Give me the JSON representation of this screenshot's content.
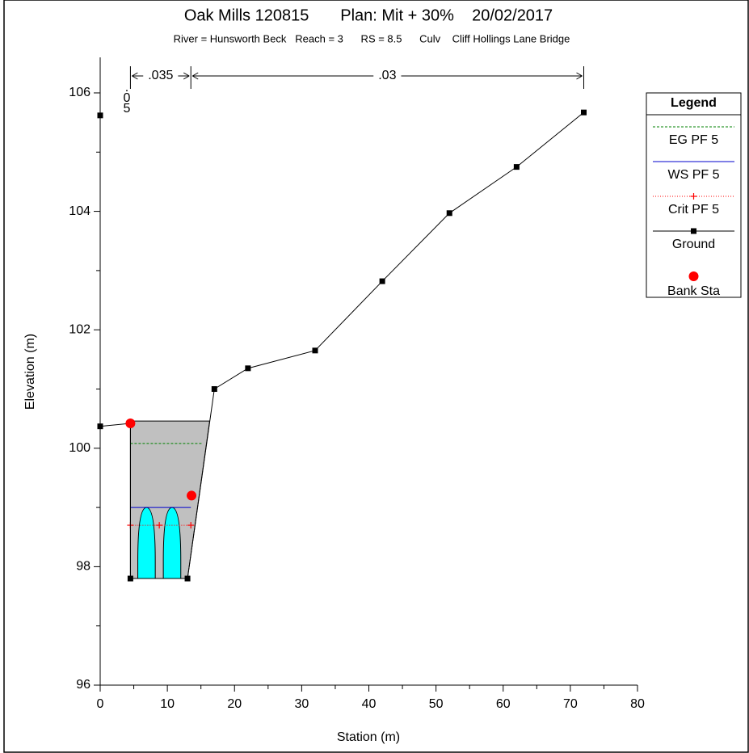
{
  "chart_data": {
    "type": "line",
    "title": "Oak Mills 120815       Plan: Mit + 30%    20/02/2017",
    "subtitle": "River = Hunsworth Beck   Reach = 3      RS = 8.5      Culv    Cliff Hollings Lane Bridge",
    "x_label": "Station (m)",
    "y_label": "Elevation (m)",
    "xlim": [
      0,
      80
    ],
    "ylim": [
      96,
      106.6
    ],
    "xticks": [
      0,
      10,
      20,
      30,
      40,
      50,
      60,
      70,
      80
    ],
    "yticks": [
      96,
      98,
      100,
      102,
      104,
      106
    ],
    "xticks_minor": [
      5,
      15,
      25,
      35,
      45,
      55,
      65,
      75
    ],
    "yticks_minor": [
      97,
      99,
      101,
      103,
      105
    ],
    "legend": "upper right",
    "legend_title": "Legend",
    "manning_breaks": [
      0,
      4.5,
      13.5,
      72
    ],
    "manning_n": [
      ".05",
      ".035",
      ".03"
    ],
    "bridge_deck": {
      "color": "#c0c0c0",
      "x": [
        4.5,
        16.3,
        13,
        4.5
      ],
      "values": [
        100.46,
        100.46,
        97.8,
        97.8
      ]
    },
    "culverts": {
      "color": "#00ffff",
      "left": [
        5.6,
        9.4
      ],
      "right": [
        8.2,
        12.0
      ],
      "bottom": 97.8,
      "top": 99.0
    },
    "series": [
      {
        "name": "EG PF 5",
        "color": "#008000",
        "style": "dashed",
        "marker": "none",
        "x": [
          4.5,
          15.2
        ],
        "values": [
          100.08,
          100.08
        ]
      },
      {
        "name": "WS PF 5",
        "color": "#0000cc",
        "style": "solid",
        "marker": "none",
        "x": [
          4.5,
          13.5
        ],
        "values": [
          99.0,
          99.0
        ]
      },
      {
        "name": "Crit PF 5",
        "color": "#ff0000",
        "style": "dotted",
        "marker": "plus",
        "x": [
          4.5,
          8.8,
          13.5
        ],
        "values": [
          98.7,
          98.7,
          98.7
        ]
      },
      {
        "name": "Ground",
        "color": "#000000",
        "style": "solid",
        "marker": "square",
        "x": [
          0,
          0,
          4.5,
          4.5,
          13,
          17,
          22,
          32,
          42,
          52,
          62,
          72
        ],
        "values": [
          105.62,
          100.37,
          100.42,
          97.8,
          97.8,
          101.0,
          101.35,
          101.65,
          102.82,
          103.97,
          104.75,
          105.67
        ]
      },
      {
        "name": "Bank Sta",
        "color": "#ff0000",
        "style": "none",
        "marker": "circle",
        "x": [
          4.5,
          13.6
        ],
        "values": [
          100.42,
          99.2
        ]
      }
    ]
  }
}
